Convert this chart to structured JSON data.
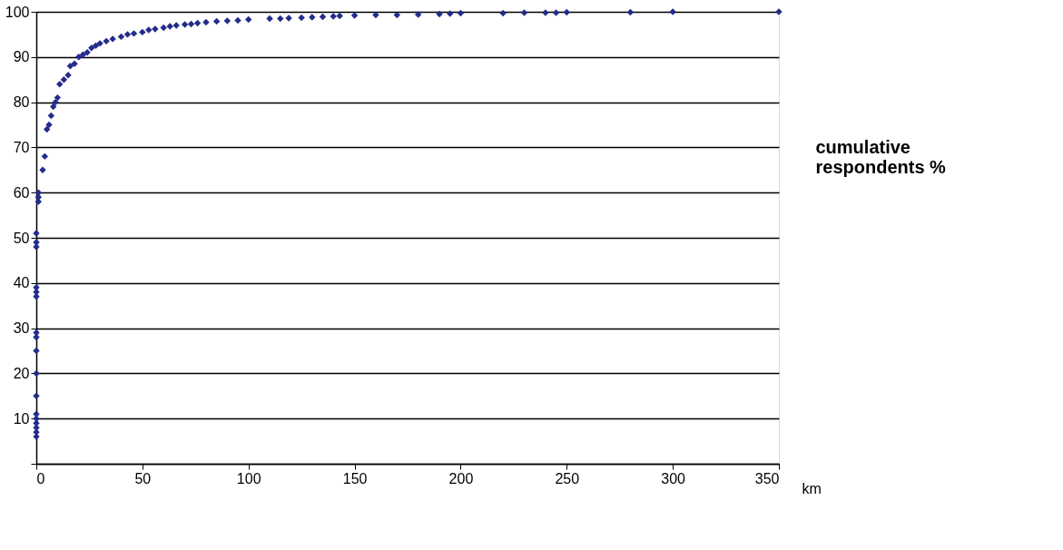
{
  "chart_data": {
    "type": "scatter",
    "xlabel": "km",
    "ylabel": "cumulative respondents %",
    "x": [
      0,
      0,
      0,
      0,
      0,
      0,
      0,
      0,
      0,
      0,
      0,
      0,
      0,
      0,
      0,
      0,
      0,
      1,
      1,
      1,
      3,
      4,
      5,
      6,
      7,
      8,
      9,
      10,
      11,
      13,
      15,
      16,
      18,
      20,
      22,
      24,
      26,
      28,
      30,
      33,
      36,
      40,
      43,
      46,
      50,
      53,
      56,
      60,
      63,
      66,
      70,
      73,
      76,
      80,
      85,
      90,
      95,
      100,
      110,
      115,
      119,
      125,
      130,
      135,
      140,
      143,
      150,
      160,
      170,
      180,
      190,
      195,
      200,
      220,
      230,
      240,
      245,
      250,
      280,
      300,
      350
    ],
    "series": [
      {
        "color": "#232c8c",
        "values": [
          6,
          7,
          8,
          9,
          10,
          11,
          15,
          20,
          25,
          28,
          29,
          37,
          38,
          39,
          48,
          49,
          51,
          58,
          59,
          60,
          65,
          68,
          74,
          75,
          77,
          79,
          80,
          81,
          84,
          85,
          86,
          88,
          88.5,
          90,
          90.5,
          91,
          92,
          92.5,
          93,
          93.5,
          94,
          94.5,
          95,
          95.2,
          95.5,
          96,
          96.2,
          96.5,
          96.8,
          97,
          97.2,
          97.3,
          97.5,
          97.7,
          97.9,
          98,
          98.1,
          98.3,
          98.5,
          98.5,
          98.6,
          98.7,
          98.8,
          98.9,
          99,
          99.1,
          99.2,
          99.3,
          99.3,
          99.4,
          99.5,
          99.6,
          99.7,
          99.7,
          99.8,
          99.8,
          99.8,
          99.9,
          99.9,
          100,
          100
        ]
      }
    ],
    "xlim": [
      0,
      350
    ],
    "xticks": [
      0,
      50,
      100,
      150,
      200,
      250,
      300,
      350
    ],
    "ylim": [
      0,
      100
    ],
    "yticks": [
      {
        "value": 0,
        "label": null
      },
      10,
      20,
      30,
      40,
      50,
      60,
      70,
      80,
      90,
      100
    ],
    "grid": "y",
    "marker": "diamond"
  }
}
